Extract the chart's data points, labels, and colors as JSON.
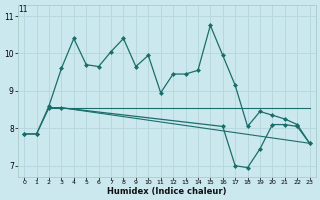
{
  "xlabel": "Humidex (Indice chaleur)",
  "xlim": [
    -0.5,
    23.5
  ],
  "ylim": [
    6.7,
    11.3
  ],
  "bg_color": "#cce8ef",
  "grid_color": "#b8d8e0",
  "line_color": "#1a6e6a",
  "series1_x": [
    0,
    1,
    2,
    3,
    4,
    5,
    6,
    7,
    8,
    9,
    10,
    11,
    12,
    13,
    14,
    15,
    16,
    17,
    18,
    19,
    20,
    21,
    22,
    23
  ],
  "series1_y": [
    7.85,
    7.85,
    8.6,
    9.6,
    10.4,
    9.7,
    9.65,
    10.05,
    10.4,
    9.65,
    9.95,
    8.95,
    9.45,
    9.45,
    9.55,
    10.75,
    9.95,
    9.15,
    8.05,
    8.45,
    8.35,
    8.25,
    8.1,
    7.6
  ],
  "series2_x": [
    2,
    3,
    23
  ],
  "series2_y": [
    8.55,
    8.55,
    8.55
  ],
  "series3_x": [
    2,
    3,
    23
  ],
  "series3_y": [
    8.55,
    8.55,
    7.6
  ],
  "series4_x": [
    0,
    1,
    2,
    3,
    16,
    17,
    18,
    19,
    20,
    21,
    22,
    23
  ],
  "series4_y": [
    7.85,
    7.85,
    8.55,
    8.55,
    8.05,
    7.0,
    6.95,
    7.45,
    8.1,
    8.1,
    8.05,
    7.6
  ],
  "ytick_labels": [
    "7",
    "8",
    "9",
    "10",
    "11"
  ],
  "ytick_vals": [
    7,
    8,
    9,
    10,
    11
  ],
  "xtick_vals": [
    0,
    1,
    2,
    3,
    4,
    5,
    6,
    7,
    8,
    9,
    10,
    11,
    12,
    13,
    14,
    15,
    16,
    17,
    18,
    19,
    20,
    21,
    22,
    23
  ],
  "ymax_label": "11"
}
